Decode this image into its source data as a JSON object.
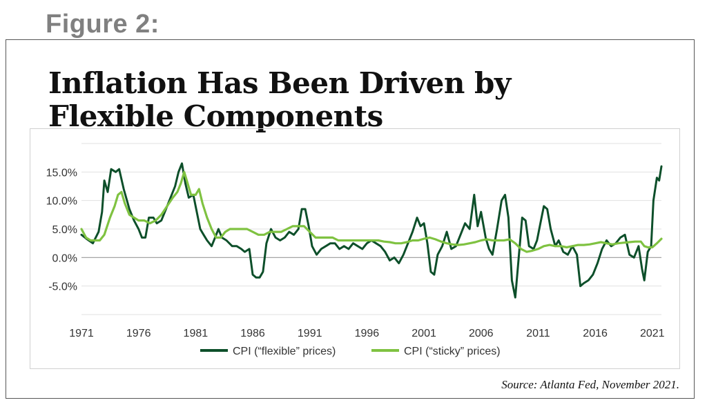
{
  "figure_label": "Figure 2:",
  "title_line1": "Inflation Has Been Driven by",
  "title_line2": "Flexible Components",
  "source": "Source: Atlanta Fed, November 2021.",
  "colors": {
    "flexible": "#0d4f2a",
    "sticky": "#7fc241",
    "zero_line": "#999999",
    "grid": "#e0e0e0"
  },
  "chart_data": {
    "type": "line",
    "title": "Inflation Has Been Driven by Flexible Components",
    "xlabel": "",
    "ylabel": "",
    "xlim": [
      1971,
      2021.8
    ],
    "ylim": [
      -10,
      20
    ],
    "y_ticks": [
      -5,
      0,
      5,
      10,
      15
    ],
    "y_tick_labels": [
      "-5.0%",
      "0.0%",
      "5.0%",
      "10.0%",
      "15.0%"
    ],
    "x_ticks": [
      1971,
      1976,
      1981,
      1986,
      1991,
      1996,
      2001,
      2006,
      2011,
      2016,
      2021
    ],
    "x_tick_labels": [
      "1971",
      "1976",
      "1981",
      "1986",
      "1991",
      "1996",
      "2001",
      "2006",
      "2011",
      "2016",
      "2021"
    ],
    "legend_position": "bottom-center",
    "series": [
      {
        "name": "CPI (“flexible” prices)",
        "points": [
          [
            1971.0,
            4.0
          ],
          [
            1971.5,
            3.2
          ],
          [
            1972.0,
            2.5
          ],
          [
            1972.5,
            4.5
          ],
          [
            1972.8,
            8.0
          ],
          [
            1973.0,
            13.5
          ],
          [
            1973.3,
            11.5
          ],
          [
            1973.6,
            15.5
          ],
          [
            1974.0,
            15.0
          ],
          [
            1974.3,
            15.5
          ],
          [
            1974.7,
            12.0
          ],
          [
            1975.2,
            8.5
          ],
          [
            1975.6,
            6.5
          ],
          [
            1976.0,
            5.0
          ],
          [
            1976.3,
            3.5
          ],
          [
            1976.6,
            3.5
          ],
          [
            1976.9,
            7.0
          ],
          [
            1977.3,
            7.0
          ],
          [
            1977.6,
            6.0
          ],
          [
            1978.0,
            6.5
          ],
          [
            1978.4,
            8.5
          ],
          [
            1978.8,
            10.5
          ],
          [
            1979.2,
            12.5
          ],
          [
            1979.5,
            15.0
          ],
          [
            1979.8,
            16.5
          ],
          [
            1980.1,
            13.0
          ],
          [
            1980.4,
            10.5
          ],
          [
            1980.8,
            11.0
          ],
          [
            1981.1,
            8.0
          ],
          [
            1981.4,
            5.0
          ],
          [
            1981.7,
            4.0
          ],
          [
            1982.0,
            3.0
          ],
          [
            1982.4,
            2.0
          ],
          [
            1982.7,
            3.5
          ],
          [
            1983.0,
            5.0
          ],
          [
            1983.3,
            3.5
          ],
          [
            1983.7,
            3.0
          ],
          [
            1984.2,
            2.0
          ],
          [
            1984.6,
            2.0
          ],
          [
            1985.0,
            1.5
          ],
          [
            1985.3,
            1.0
          ],
          [
            1985.7,
            1.5
          ],
          [
            1986.0,
            -3.0
          ],
          [
            1986.3,
            -3.5
          ],
          [
            1986.6,
            -3.5
          ],
          [
            1986.9,
            -2.5
          ],
          [
            1987.2,
            2.5
          ],
          [
            1987.6,
            5.0
          ],
          [
            1988.0,
            3.5
          ],
          [
            1988.4,
            3.0
          ],
          [
            1988.8,
            3.5
          ],
          [
            1989.2,
            4.5
          ],
          [
            1989.6,
            4.0
          ],
          [
            1990.0,
            5.0
          ],
          [
            1990.3,
            8.5
          ],
          [
            1990.6,
            8.5
          ],
          [
            1990.9,
            5.5
          ],
          [
            1991.2,
            2.0
          ],
          [
            1991.6,
            0.5
          ],
          [
            1992.0,
            1.5
          ],
          [
            1992.4,
            2.0
          ],
          [
            1992.8,
            2.5
          ],
          [
            1993.2,
            2.5
          ],
          [
            1993.6,
            1.5
          ],
          [
            1994.0,
            2.0
          ],
          [
            1994.4,
            1.5
          ],
          [
            1994.8,
            2.5
          ],
          [
            1995.2,
            2.0
          ],
          [
            1995.6,
            1.5
          ],
          [
            1996.0,
            2.5
          ],
          [
            1996.4,
            3.0
          ],
          [
            1996.8,
            2.5
          ],
          [
            1997.2,
            2.0
          ],
          [
            1997.6,
            1.0
          ],
          [
            1998.0,
            -0.5
          ],
          [
            1998.4,
            0.0
          ],
          [
            1998.8,
            -1.0
          ],
          [
            1999.2,
            0.5
          ],
          [
            1999.6,
            2.5
          ],
          [
            2000.0,
            4.5
          ],
          [
            2000.4,
            7.0
          ],
          [
            2000.7,
            5.5
          ],
          [
            2001.0,
            6.0
          ],
          [
            2001.3,
            2.5
          ],
          [
            2001.6,
            -2.5
          ],
          [
            2001.9,
            -3.0
          ],
          [
            2002.2,
            0.5
          ],
          [
            2002.6,
            2.0
          ],
          [
            2003.0,
            4.5
          ],
          [
            2003.4,
            1.5
          ],
          [
            2003.8,
            2.0
          ],
          [
            2004.2,
            4.0
          ],
          [
            2004.6,
            6.0
          ],
          [
            2005.0,
            5.0
          ],
          [
            2005.4,
            11.0
          ],
          [
            2005.7,
            5.5
          ],
          [
            2006.0,
            8.0
          ],
          [
            2006.4,
            3.5
          ],
          [
            2006.7,
            1.5
          ],
          [
            2007.0,
            0.5
          ],
          [
            2007.4,
            5.0
          ],
          [
            2007.8,
            10.0
          ],
          [
            2008.1,
            11.0
          ],
          [
            2008.4,
            7.0
          ],
          [
            2008.7,
            -4.0
          ],
          [
            2009.0,
            -7.0
          ],
          [
            2009.3,
            0.0
          ],
          [
            2009.6,
            7.0
          ],
          [
            2009.9,
            6.5
          ],
          [
            2010.2,
            2.0
          ],
          [
            2010.6,
            1.5
          ],
          [
            2010.9,
            3.0
          ],
          [
            2011.2,
            6.0
          ],
          [
            2011.5,
            9.0
          ],
          [
            2011.8,
            8.5
          ],
          [
            2012.1,
            5.0
          ],
          [
            2012.5,
            2.0
          ],
          [
            2012.8,
            3.0
          ],
          [
            2013.2,
            1.0
          ],
          [
            2013.6,
            0.5
          ],
          [
            2014.0,
            2.0
          ],
          [
            2014.4,
            0.5
          ],
          [
            2014.7,
            -5.0
          ],
          [
            2015.0,
            -4.5
          ],
          [
            2015.4,
            -4.0
          ],
          [
            2015.8,
            -3.0
          ],
          [
            2016.2,
            -1.0
          ],
          [
            2016.6,
            1.5
          ],
          [
            2017.0,
            3.0
          ],
          [
            2017.4,
            2.0
          ],
          [
            2017.8,
            2.5
          ],
          [
            2018.2,
            3.5
          ],
          [
            2018.6,
            4.0
          ],
          [
            2019.0,
            0.5
          ],
          [
            2019.4,
            0.0
          ],
          [
            2019.8,
            2.0
          ],
          [
            2020.1,
            -2.0
          ],
          [
            2020.3,
            -4.0
          ],
          [
            2020.6,
            1.0
          ],
          [
            2020.9,
            2.0
          ],
          [
            2021.1,
            10.0
          ],
          [
            2021.4,
            14.0
          ],
          [
            2021.6,
            13.5
          ],
          [
            2021.8,
            16.0
          ]
        ]
      },
      {
        "name": "CPI (“sticky” prices)",
        "points": [
          [
            1971.0,
            5.0
          ],
          [
            1971.4,
            3.5
          ],
          [
            1971.8,
            3.0
          ],
          [
            1972.2,
            3.0
          ],
          [
            1972.6,
            3.0
          ],
          [
            1973.0,
            4.0
          ],
          [
            1973.5,
            7.0
          ],
          [
            1973.9,
            9.0
          ],
          [
            1974.2,
            11.0
          ],
          [
            1974.5,
            11.5
          ],
          [
            1974.8,
            9.5
          ],
          [
            1975.2,
            7.5
          ],
          [
            1975.6,
            7.0
          ],
          [
            1976.0,
            6.5
          ],
          [
            1976.5,
            6.5
          ],
          [
            1977.0,
            6.0
          ],
          [
            1977.5,
            6.5
          ],
          [
            1978.0,
            7.5
          ],
          [
            1978.5,
            9.0
          ],
          [
            1979.0,
            10.5
          ],
          [
            1979.4,
            11.5
          ],
          [
            1979.7,
            13.0
          ],
          [
            1980.0,
            15.0
          ],
          [
            1980.3,
            13.0
          ],
          [
            1980.6,
            11.0
          ],
          [
            1981.0,
            11.0
          ],
          [
            1981.3,
            12.0
          ],
          [
            1981.6,
            9.5
          ],
          [
            1982.0,
            7.0
          ],
          [
            1982.4,
            5.0
          ],
          [
            1982.8,
            3.5
          ],
          [
            1983.2,
            3.5
          ],
          [
            1983.6,
            4.5
          ],
          [
            1984.0,
            5.0
          ],
          [
            1984.5,
            5.0
          ],
          [
            1985.0,
            5.0
          ],
          [
            1985.5,
            5.0
          ],
          [
            1986.0,
            4.5
          ],
          [
            1986.5,
            4.0
          ],
          [
            1987.0,
            4.0
          ],
          [
            1987.5,
            4.5
          ],
          [
            1988.0,
            4.5
          ],
          [
            1988.5,
            4.5
          ],
          [
            1989.0,
            5.0
          ],
          [
            1989.5,
            5.5
          ],
          [
            1990.0,
            5.5
          ],
          [
            1990.5,
            5.5
          ],
          [
            1991.0,
            4.5
          ],
          [
            1991.5,
            3.5
          ],
          [
            1992.0,
            3.5
          ],
          [
            1992.5,
            3.5
          ],
          [
            1993.0,
            3.5
          ],
          [
            1993.5,
            3.0
          ],
          [
            1994.0,
            3.0
          ],
          [
            1994.5,
            3.0
          ],
          [
            1995.0,
            3.0
          ],
          [
            1995.5,
            3.0
          ],
          [
            1996.0,
            3.0
          ],
          [
            1996.5,
            3.0
          ],
          [
            1997.0,
            3.0
          ],
          [
            1997.5,
            2.8
          ],
          [
            1998.0,
            2.7
          ],
          [
            1998.5,
            2.5
          ],
          [
            1999.0,
            2.5
          ],
          [
            1999.5,
            2.7
          ],
          [
            2000.0,
            3.0
          ],
          [
            2000.5,
            3.0
          ],
          [
            2001.0,
            3.3
          ],
          [
            2001.5,
            3.5
          ],
          [
            2002.0,
            3.2
          ],
          [
            2002.5,
            2.8
          ],
          [
            2003.0,
            2.5
          ],
          [
            2003.5,
            2.3
          ],
          [
            2004.0,
            2.2
          ],
          [
            2004.5,
            2.3
          ],
          [
            2005.0,
            2.5
          ],
          [
            2005.5,
            2.7
          ],
          [
            2006.0,
            3.0
          ],
          [
            2006.5,
            3.2
          ],
          [
            2007.0,
            3.0
          ],
          [
            2007.5,
            3.0
          ],
          [
            2008.0,
            3.0
          ],
          [
            2008.5,
            3.2
          ],
          [
            2009.0,
            2.5
          ],
          [
            2009.5,
            1.5
          ],
          [
            2010.0,
            1.0
          ],
          [
            2010.5,
            1.2
          ],
          [
            2011.0,
            1.5
          ],
          [
            2011.5,
            2.0
          ],
          [
            2012.0,
            2.2
          ],
          [
            2012.5,
            2.0
          ],
          [
            2013.0,
            2.0
          ],
          [
            2013.5,
            1.8
          ],
          [
            2014.0,
            2.0
          ],
          [
            2014.5,
            2.2
          ],
          [
            2015.0,
            2.2
          ],
          [
            2015.5,
            2.3
          ],
          [
            2016.0,
            2.5
          ],
          [
            2016.5,
            2.7
          ],
          [
            2017.0,
            2.5
          ],
          [
            2017.5,
            2.3
          ],
          [
            2018.0,
            2.5
          ],
          [
            2018.5,
            2.6
          ],
          [
            2019.0,
            2.7
          ],
          [
            2019.5,
            2.8
          ],
          [
            2020.0,
            2.8
          ],
          [
            2020.3,
            2.0
          ],
          [
            2020.6,
            1.8
          ],
          [
            2021.0,
            1.8
          ],
          [
            2021.4,
            2.5
          ],
          [
            2021.8,
            3.3
          ]
        ]
      }
    ]
  }
}
